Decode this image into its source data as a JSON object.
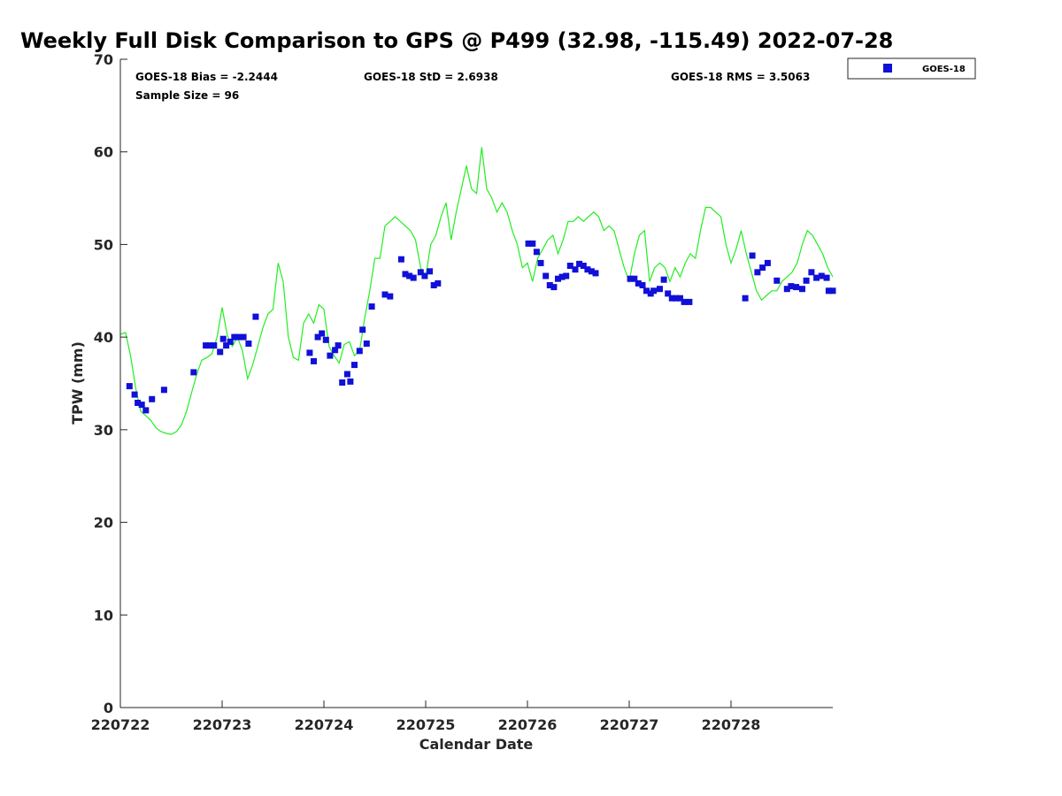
{
  "chart_data": {
    "type": "scatter",
    "title": "Weekly Full Disk Comparison to GPS @ P499 (32.98, -115.49) 2022-07-28",
    "xlabel": "Calendar Date",
    "ylabel": "TPW (mm)",
    "xlim": [
      0,
      7
    ],
    "ylim": [
      0,
      70
    ],
    "x_tick_values": [
      0,
      1,
      2,
      3,
      4,
      5,
      6
    ],
    "x_tick_labels": [
      "220722",
      "220723",
      "220724",
      "220725",
      "220726",
      "220727",
      "220728"
    ],
    "y_tick_values": [
      0,
      10,
      20,
      30,
      40,
      50,
      60,
      70
    ],
    "y_tick_labels": [
      "0",
      "10",
      "20",
      "30",
      "40",
      "50",
      "60",
      "70"
    ],
    "stats": {
      "bias": "GOES-18 Bias = -2.2444",
      "std": "GOES-18 StD = 2.6938",
      "rms": "GOES-18 RMS = 3.5063",
      "sample": "Sample Size = 96"
    },
    "legend": {
      "label": "GOES-18",
      "placement": "top-right outside"
    },
    "colors": {
      "goes": "#1010d8",
      "gps": "#22ee22",
      "axis": "#262626"
    },
    "series": [
      {
        "name": "GOES-18",
        "kind": "markers",
        "x": [
          0.09,
          0.14,
          0.17,
          0.21,
          0.25,
          0.31,
          0.43,
          0.72,
          0.84,
          0.88,
          0.92,
          0.98,
          1.01,
          1.04,
          1.08,
          1.12,
          1.16,
          1.21,
          1.26,
          1.33,
          1.86,
          1.9,
          1.94,
          1.98,
          2.02,
          2.06,
          2.11,
          2.14,
          2.18,
          2.23,
          2.26,
          2.3,
          2.35,
          2.38,
          2.42,
          2.47,
          2.6,
          2.65,
          2.76,
          2.8,
          2.84,
          2.88,
          2.95,
          2.99,
          3.04,
          3.08,
          3.12,
          4.01,
          4.05,
          4.09,
          4.13,
          4.18,
          4.22,
          4.26,
          4.3,
          4.34,
          4.38,
          4.42,
          4.47,
          4.51,
          4.55,
          4.59,
          4.63,
          4.67,
          5.01,
          5.05,
          5.09,
          5.13,
          5.17,
          5.21,
          5.24,
          5.3,
          5.34,
          5.38,
          5.42,
          5.46,
          5.5,
          5.54,
          5.59,
          6.14,
          6.21,
          6.26,
          6.31,
          6.36,
          6.45,
          6.55,
          6.59,
          6.64,
          6.7,
          6.74,
          6.79,
          6.84,
          6.89,
          6.94,
          6.96,
          7.0
        ],
        "y": [
          34.7,
          33.8,
          32.9,
          32.7,
          32.1,
          33.3,
          34.3,
          36.2,
          39.1,
          39.1,
          39.1,
          38.4,
          39.8,
          39.1,
          39.5,
          40.0,
          40.0,
          40.0,
          39.3,
          42.2,
          38.3,
          37.4,
          40.0,
          40.4,
          39.7,
          38.0,
          38.6,
          39.1,
          35.1,
          36.0,
          35.2,
          37.0,
          38.5,
          40.8,
          39.3,
          43.3,
          44.6,
          44.4,
          48.4,
          46.8,
          46.6,
          46.4,
          47.0,
          46.6,
          47.1,
          45.6,
          45.8,
          50.1,
          50.1,
          49.2,
          48.0,
          46.6,
          45.6,
          45.4,
          46.3,
          46.5,
          46.6,
          47.7,
          47.3,
          47.9,
          47.7,
          47.3,
          47.1,
          46.9,
          46.3,
          46.3,
          45.8,
          45.6,
          45.0,
          44.7,
          45.0,
          45.2,
          46.2,
          44.7,
          44.2,
          44.2,
          44.2,
          43.8,
          43.8,
          44.2,
          48.8,
          47.0,
          47.5,
          48.0,
          46.1,
          45.2,
          45.5,
          45.4,
          45.2,
          46.1,
          47.0,
          46.4,
          46.6,
          46.4,
          45.0,
          45.0
        ]
      },
      {
        "name": "GPS",
        "kind": "line",
        "x": [
          0.0,
          0.05,
          0.1,
          0.15,
          0.2,
          0.25,
          0.3,
          0.35,
          0.4,
          0.45,
          0.5,
          0.55,
          0.6,
          0.65,
          0.7,
          0.75,
          0.8,
          0.85,
          0.9,
          0.95,
          1.0,
          1.05,
          1.1,
          1.15,
          1.2,
          1.25,
          1.3,
          1.35,
          1.4,
          1.45,
          1.5,
          1.55,
          1.6,
          1.65,
          1.7,
          1.75,
          1.8,
          1.85,
          1.9,
          1.95,
          2.0,
          2.05,
          2.1,
          2.15,
          2.2,
          2.25,
          2.3,
          2.35,
          2.4,
          2.45,
          2.5,
          2.55,
          2.6,
          2.65,
          2.7,
          2.75,
          2.8,
          2.85,
          2.9,
          2.95,
          3.0,
          3.05,
          3.1,
          3.15,
          3.2,
          3.25,
          3.3,
          3.35,
          3.4,
          3.45,
          3.5,
          3.55,
          3.6,
          3.65,
          3.7,
          3.75,
          3.8,
          3.85,
          3.9,
          3.95,
          4.0,
          4.05,
          4.1,
          4.15,
          4.2,
          4.25,
          4.3,
          4.35,
          4.4,
          4.45,
          4.5,
          4.55,
          4.6,
          4.65,
          4.7,
          4.75,
          4.8,
          4.85,
          4.9,
          4.95,
          5.0,
          5.05,
          5.1,
          5.15,
          5.2,
          5.25,
          5.3,
          5.35,
          5.4,
          5.45,
          5.5,
          5.55,
          5.6,
          5.65,
          5.7,
          5.75,
          5.8,
          5.85,
          5.9,
          5.95,
          6.0,
          6.05,
          6.1,
          6.15,
          6.2,
          6.25,
          6.3,
          6.35,
          6.4,
          6.45,
          6.5,
          6.55,
          6.6,
          6.65,
          6.7,
          6.75,
          6.8,
          6.85,
          6.9,
          6.95,
          7.0
        ],
        "y": [
          40.3,
          40.5,
          38.0,
          34.5,
          32.0,
          31.5,
          31.0,
          30.2,
          29.8,
          29.6,
          29.5,
          29.8,
          30.5,
          32.0,
          34.0,
          36.0,
          37.5,
          37.8,
          38.2,
          40.0,
          43.2,
          40.2,
          39.0,
          40.0,
          38.5,
          35.5,
          37.0,
          39.0,
          41.0,
          42.5,
          43.0,
          48.0,
          46.0,
          40.0,
          37.8,
          37.5,
          41.5,
          42.5,
          41.5,
          43.5,
          43.0,
          39.0,
          38.0,
          37.2,
          39.2,
          39.5,
          38.0,
          38.5,
          42.0,
          45.0,
          48.5,
          48.5,
          52.0,
          52.5,
          53.0,
          52.5,
          52.0,
          51.5,
          50.5,
          47.5,
          46.5,
          50.0,
          51.0,
          53.0,
          54.5,
          50.5,
          53.5,
          56.0,
          58.5,
          56.0,
          55.5,
          60.5,
          56.0,
          55.0,
          53.5,
          54.5,
          53.5,
          51.5,
          50.0,
          47.5,
          48.0,
          46.0,
          48.5,
          49.5,
          50.5,
          51.0,
          49.0,
          50.5,
          52.5,
          52.5,
          53.0,
          52.5,
          53.0,
          53.5,
          53.0,
          51.5,
          52.0,
          51.5,
          49.5,
          47.5,
          46.0,
          49.0,
          51.0,
          51.5,
          46.0,
          47.5,
          48.0,
          47.5,
          46.0,
          47.5,
          46.5,
          48.0,
          49.0,
          48.5,
          51.5,
          54.0,
          54.0,
          53.5,
          53.0,
          50.0,
          48.0,
          49.5,
          51.5,
          49.0,
          47.0,
          45.0,
          44.0,
          44.5,
          45.0,
          45.0,
          46.0,
          46.5,
          47.0,
          48.0,
          50.0,
          51.5,
          51.0,
          50.0,
          49.0,
          47.5,
          46.5
        ]
      }
    ]
  }
}
